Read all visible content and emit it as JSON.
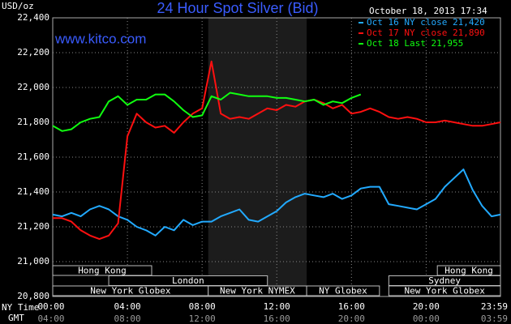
{
  "chart_data": {
    "type": "line",
    "title": "24 Hour Spot Silver (Bid)",
    "y_label": "USD/oz",
    "source": "www.kitco.com",
    "timestamp": "October 18, 2013 17:34",
    "x_label": "NY Time",
    "x2_label": "GMT",
    "x": [
      0,
      0.5,
      1,
      1.5,
      2,
      2.5,
      3,
      3.5,
      4,
      4.5,
      5,
      5.5,
      6,
      6.5,
      7,
      7.5,
      8,
      8.5,
      9,
      9.5,
      10,
      10.5,
      11,
      11.5,
      12,
      12.5,
      13,
      13.5,
      14,
      14.5,
      15,
      15.5,
      16,
      16.5,
      17,
      17.5,
      18,
      18.5,
      19,
      19.5,
      20,
      20.5,
      21,
      21.5,
      22,
      22.5,
      23,
      23.5,
      23.98
    ],
    "series": [
      {
        "name": "Oct 16 NY close 21,420",
        "color": "#22aaff",
        "values": [
          21270,
          21260,
          21280,
          21260,
          21300,
          21320,
          21300,
          21260,
          21240,
          21200,
          21180,
          21150,
          21200,
          21180,
          21240,
          21210,
          21230,
          21230,
          21260,
          21280,
          21300,
          21240,
          21230,
          21260,
          21290,
          21340,
          21370,
          21390,
          21380,
          21370,
          21390,
          21360,
          21380,
          21420,
          21430,
          21430,
          21330,
          21320,
          21310,
          21300,
          21330,
          21360,
          21430,
          21480,
          21530,
          21410,
          21320,
          21260,
          21270
        ]
      },
      {
        "name": "Oct 17 NY close 21,890",
        "color": "#ff1010",
        "values": [
          21250,
          21250,
          21230,
          21180,
          21150,
          21130,
          21150,
          21220,
          21720,
          21850,
          21800,
          21770,
          21780,
          21740,
          21800,
          21850,
          21880,
          22150,
          21850,
          21820,
          21830,
          21820,
          21850,
          21880,
          21870,
          21900,
          21890,
          21920,
          21930,
          21910,
          21880,
          21900,
          21850,
          21860,
          21880,
          21860,
          21830,
          21820,
          21830,
          21820,
          21800,
          21800,
          21810,
          21800,
          21790,
          21780,
          21780,
          21790,
          21800
        ]
      },
      {
        "name": "Oct 18 Last 21,955",
        "color": "#10ff10",
        "values": [
          21780,
          21750,
          21760,
          21800,
          21820,
          21830,
          21920,
          21950,
          21900,
          21930,
          21930,
          21960,
          21960,
          21920,
          21870,
          21830,
          21840,
          21950,
          21930,
          21970,
          21960,
          21950,
          21950,
          21950,
          21940,
          21940,
          21930,
          21920,
          21930,
          21900,
          21920,
          21910,
          21940,
          21960,
          null,
          null,
          null,
          null,
          null,
          null,
          null,
          null,
          null,
          null,
          null,
          null,
          null,
          null,
          null
        ]
      }
    ],
    "xlim": [
      0,
      23.98
    ],
    "xticks": [
      {
        "value": 0,
        "label": "00:00"
      },
      {
        "value": 4,
        "label": "04:00"
      },
      {
        "value": 8,
        "label": "08:00"
      },
      {
        "value": 12,
        "label": "12:00"
      },
      {
        "value": 16,
        "label": "16:00"
      },
      {
        "value": 20,
        "label": "20:00"
      },
      {
        "value": 23.98,
        "label": "23:59"
      }
    ],
    "xticks_gmt": [
      "04:00",
      "08:00",
      "12:00",
      "16:00",
      "20:00",
      "00:00",
      "03:59"
    ],
    "ylim": [
      20800,
      22400
    ],
    "yticks": [
      {
        "value": 20800,
        "label": "20,800"
      },
      {
        "value": 21000,
        "label": "21,000"
      },
      {
        "value": 21200,
        "label": "21,200"
      },
      {
        "value": 21400,
        "label": "21,400"
      },
      {
        "value": 21600,
        "label": "21,600"
      },
      {
        "value": 21800,
        "label": "21,800"
      },
      {
        "value": 22000,
        "label": "22,000"
      },
      {
        "value": 22200,
        "label": "22,200"
      },
      {
        "value": 22400,
        "label": "22,400"
      }
    ],
    "grid": true,
    "highlight": [
      8.33,
      13.6
    ],
    "sessions": [
      [
        {
          "label": "Hong Kong",
          "start": 0,
          "end": 5.3
        },
        {
          "label": "Hong Kong",
          "start": 20.6,
          "end": 23.98
        }
      ],
      [
        {
          "label": "London",
          "start": 3,
          "end": 11.5
        },
        {
          "label": "Sydney",
          "start": 18,
          "end": 23.98
        }
      ],
      [
        {
          "label": "New York Globex",
          "start": 0,
          "end": 8.33
        },
        {
          "label": "New York NYMEX",
          "start": 8.33,
          "end": 13.6
        },
        {
          "label": "NY Globex",
          "start": 13.6,
          "end": 17.5
        },
        {
          "label": "New York Globex",
          "start": 18,
          "end": 23.98
        }
      ]
    ]
  }
}
